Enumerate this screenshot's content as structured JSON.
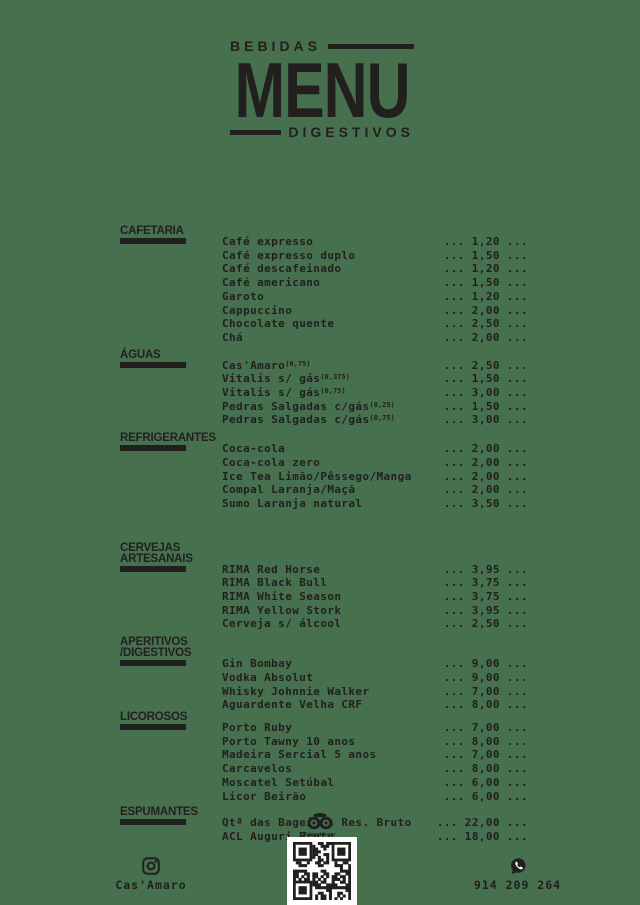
{
  "page": {
    "background_color": "#47704F",
    "ink_color": "#21201E",
    "paper_color": "#FFFFFF"
  },
  "brand": {
    "top_label": "BEBIDAS",
    "title": "MENU",
    "bottom_label": "DIGESTIVOS"
  },
  "menu": {
    "sections": [
      {
        "label_lines": [
          "CAFETARIA"
        ],
        "items": [
          {
            "name": "Café expresso",
            "price": "... 1,20 ..."
          },
          {
            "name": "Café expresso duplo",
            "price": "... 1,50 ..."
          },
          {
            "name": "Café descafeinado",
            "price": "... 1,20 ..."
          },
          {
            "name": "Café americano",
            "price": "... 1,50 ..."
          },
          {
            "name": "Garoto",
            "price": "... 1,20 ..."
          },
          {
            "name": "Cappuccino",
            "price": "... 2,00 ..."
          },
          {
            "name": "Chocolate quente",
            "price": "... 2,50 ..."
          },
          {
            "name": "Chá",
            "price": "... 2,00 ..."
          }
        ]
      },
      {
        "label_lines": [
          "ÁGUAS"
        ],
        "items": [
          {
            "name": "Cas'Amaro",
            "sup": "(0,75)",
            "price": "... 2,50 ..."
          },
          {
            "name": "Vitalis s/ gás",
            "sup": "(0,375)",
            "price": "... 1,50 ..."
          },
          {
            "name": "Vitalis s/ gás",
            "sup": "(0,75)",
            "price": "... 3,00 ..."
          },
          {
            "name": "Pedras Salgadas c/gás",
            "sup": "(0,25)",
            "price": "... 1,50 ..."
          },
          {
            "name": "Pedras Salgadas c/gás",
            "sup": "(0,75)",
            "price": "... 3,00 ..."
          }
        ]
      },
      {
        "label_lines": [
          "REFRIGERANTES"
        ],
        "items": [
          {
            "name": "Coca-cola",
            "price": "... 2,00 ..."
          },
          {
            "name": "Coca-cola zero",
            "price": "... 2,00 ..."
          },
          {
            "name": "Ice Tea Limão/Pêssego/Manga",
            "price": "... 2,00 ..."
          },
          {
            "name": "Compal Laranja/Maçã",
            "price": "... 2,00 ..."
          },
          {
            "name": "Sumo Laranja natural",
            "price": "... 3,50 ..."
          }
        ]
      },
      {
        "label_lines": [
          "CERVEJAS",
          "ARTESANAIS"
        ],
        "items": [
          {
            "name": "RIMA Red Horse",
            "price": "... 3,95 ..."
          },
          {
            "name": "RIMA Black Bull",
            "price": "... 3,75 ..."
          },
          {
            "name": "RIMA White Season",
            "price": "... 3,75 ..."
          },
          {
            "name": "RIMA Yellow Stork",
            "price": "... 3,95 ..."
          },
          {
            "name": "Cerveja s/ álcool",
            "price": "... 2,50 ..."
          }
        ]
      },
      {
        "label_lines": [
          "APERITIVOS",
          "/DIGESTIVOS"
        ],
        "items": [
          {
            "name": "Gin Bombay",
            "price": "... 9,00 ..."
          },
          {
            "name": "Vodka Absolut",
            "price": "... 9,00 ..."
          },
          {
            "name": "Whisky Johnnie Walker",
            "price": "... 7,00 ..."
          },
          {
            "name": "Aguardente Velha CRF",
            "price": "... 8,00 ..."
          }
        ]
      },
      {
        "label_lines": [
          "LICOROSOS"
        ],
        "items": [
          {
            "name": "Porto Ruby",
            "price": "... 7,00 ..."
          },
          {
            "name": "Porto Tawny 10 anos",
            "price": "... 8,00 ..."
          },
          {
            "name": "Madeira Sercial 5 anos",
            "price": "... 7,00 ..."
          },
          {
            "name": "Carcavelos",
            "price": "... 8,00 ..."
          },
          {
            "name": "Moscatel Setúbal",
            "price": "... 6,00 ..."
          },
          {
            "name": "Licor Beirão",
            "price": "... 6,00 ..."
          }
        ]
      },
      {
        "label_lines": [
          "ESPUMANTES"
        ],
        "items": [
          {
            "name": "Qtª das Bageiras Res. Bruto",
            "price": "... 22,00 ..."
          },
          {
            "name": "ACL Auguri Bruto",
            "price": "... 18,00 ..."
          }
        ]
      }
    ]
  },
  "footer": {
    "tripadvisor_label": "Tripadvisor",
    "instagram_handle": "Cas'Amaro",
    "phone_number": "914 209 264"
  }
}
